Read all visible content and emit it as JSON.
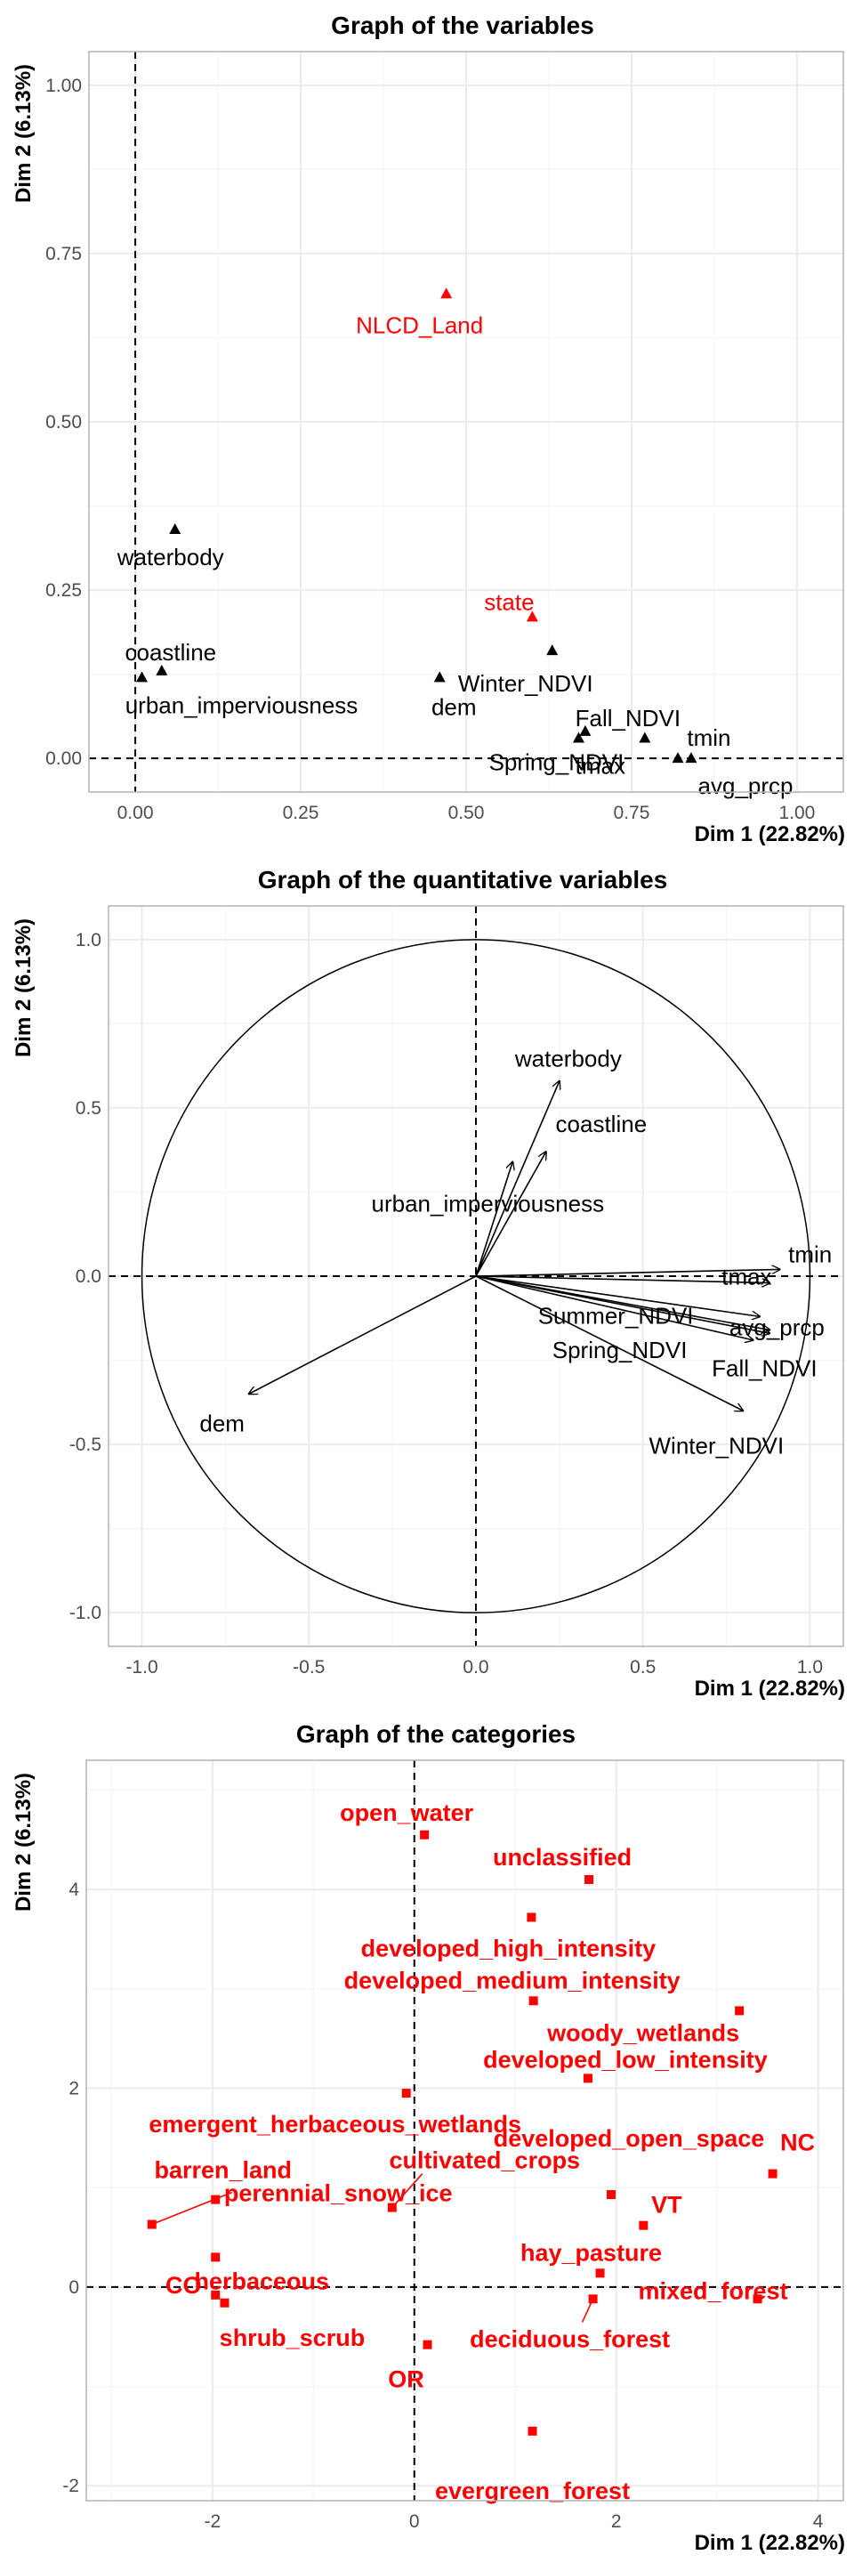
{
  "chart_data": [
    {
      "type": "scatter",
      "title": "Graph of the variables",
      "xlabel": "Dim 1 (22.82%)",
      "ylabel": "Dim 2 (6.13%)",
      "xlim": [
        -0.07,
        1.07
      ],
      "ylim": [
        -0.05,
        1.05
      ],
      "xticks": [
        "0.00",
        "0.25",
        "0.50",
        "0.75",
        "1.00"
      ],
      "yticks": [
        "0.00",
        "0.25",
        "0.50",
        "0.75",
        "1.00"
      ],
      "points": [
        {
          "label": "NLCD_Land",
          "x": 0.47,
          "y": 0.69,
          "color": "#ff0000"
        },
        {
          "label": "waterbody",
          "x": 0.06,
          "y": 0.34,
          "color": "#000000"
        },
        {
          "label": "state",
          "x": 0.6,
          "y": 0.21,
          "color": "#ff0000"
        },
        {
          "label": "coastline",
          "x": 0.04,
          "y": 0.13,
          "color": "#000000"
        },
        {
          "label": "urban_imperviousness",
          "x": 0.01,
          "y": 0.12,
          "color": "#000000"
        },
        {
          "label": "dem",
          "x": 0.46,
          "y": 0.12,
          "color": "#000000"
        },
        {
          "label": "Winter_NDVI",
          "x": 0.63,
          "y": 0.16,
          "color": "#000000"
        },
        {
          "label": "Fall_NDVI",
          "x": 0.68,
          "y": 0.04,
          "color": "#000000"
        },
        {
          "label": "Spring_NDVI",
          "x": 0.67,
          "y": 0.03,
          "color": "#000000"
        },
        {
          "label": "tmin",
          "x": 0.84,
          "y": 0.0,
          "color": "#000000"
        },
        {
          "label": "tmax",
          "x": 0.77,
          "y": 0.03,
          "color": "#000000"
        },
        {
          "label": "avg_prcp",
          "x": 0.82,
          "y": 0.0,
          "color": "#000000"
        }
      ]
    },
    {
      "type": "scatter",
      "title": "Graph of the quantitative variables",
      "xlabel": "Dim 1 (22.82%)",
      "ylabel": "Dim 2 (6.13%)",
      "xlim": [
        -1.1,
        1.1
      ],
      "ylim": [
        -1.1,
        1.1
      ],
      "xticks": [
        "-1.0",
        "-0.5",
        "0.0",
        "0.5",
        "1.0"
      ],
      "yticks": [
        "-1.0",
        "-0.5",
        "0.0",
        "0.5",
        "1.0"
      ],
      "arrows": [
        {
          "label": "waterbody",
          "x": 0.25,
          "y": 0.58
        },
        {
          "label": "coastline",
          "x": 0.21,
          "y": 0.37
        },
        {
          "label": "urban_imperviousness",
          "x": 0.11,
          "y": 0.34
        },
        {
          "label": "tmin",
          "x": 0.91,
          "y": 0.02
        },
        {
          "label": "tmax",
          "x": 0.88,
          "y": -0.02
        },
        {
          "label": "avg_prcp",
          "x": 0.88,
          "y": -0.16
        },
        {
          "label": "Summer_NDVI",
          "x": 0.85,
          "y": -0.12
        },
        {
          "label": "Spring_NDVI",
          "x": 0.83,
          "y": -0.19
        },
        {
          "label": "Fall_NDVI",
          "x": 0.88,
          "y": -0.17
        },
        {
          "label": "Winter_NDVI",
          "x": 0.8,
          "y": -0.4
        },
        {
          "label": "dem",
          "x": -0.68,
          "y": -0.35
        }
      ]
    },
    {
      "type": "scatter",
      "title": "Graph of the categories",
      "xlabel": "Dim 1 (22.82%)",
      "ylabel": "Dim 2 (6.13%)",
      "xlim": [
        -3.25,
        4.25
      ],
      "ylim": [
        -2.15,
        5.3
      ],
      "xticks": [
        "-2",
        "0",
        "2",
        "4"
      ],
      "yticks": [
        "-2",
        "0",
        "2",
        "4"
      ],
      "color": "#ff0000",
      "points": [
        {
          "label": "open_water",
          "x": 0.1,
          "y": 4.55
        },
        {
          "label": "unclassified",
          "x": 1.73,
          "y": 4.1
        },
        {
          "label": "developed_high_intensity",
          "x": 1.16,
          "y": 3.72
        },
        {
          "label": "developed_medium_intensity",
          "x": 1.18,
          "y": 2.88
        },
        {
          "label": "woody_wetlands",
          "x": 3.22,
          "y": 2.78
        },
        {
          "label": "developed_low_intensity",
          "x": 1.72,
          "y": 2.1
        },
        {
          "label": "emergent_herbaceous_wetlands",
          "x": -0.08,
          "y": 1.95
        },
        {
          "label": "developed_open_space",
          "x": 1.95,
          "y": 0.93
        },
        {
          "label": "NC",
          "x": 3.55,
          "y": 1.14
        },
        {
          "label": "barren_land",
          "x": -2.6,
          "y": 0.63
        },
        {
          "label": "cultivated_crops",
          "x": -0.22,
          "y": 0.8
        },
        {
          "label": "perennial_snow_ice",
          "x": -1.97,
          "y": 0.88
        },
        {
          "label": "VT",
          "x": 2.27,
          "y": 0.62
        },
        {
          "label": "herbaceous",
          "x": -1.97,
          "y": 0.3
        },
        {
          "label": "hay_pasture",
          "x": 1.84,
          "y": 0.14
        },
        {
          "label": "CO",
          "x": -1.97,
          "y": -0.08
        },
        {
          "label": "shrub_scrub",
          "x": -1.88,
          "y": -0.16
        },
        {
          "label": "mixed_forest",
          "x": 3.4,
          "y": -0.12
        },
        {
          "label": "deciduous_forest",
          "x": 1.77,
          "y": -0.12
        },
        {
          "label": "OR",
          "x": 0.13,
          "y": -0.58
        },
        {
          "label": "evergreen_forest",
          "x": 1.17,
          "y": -1.45
        }
      ]
    }
  ]
}
